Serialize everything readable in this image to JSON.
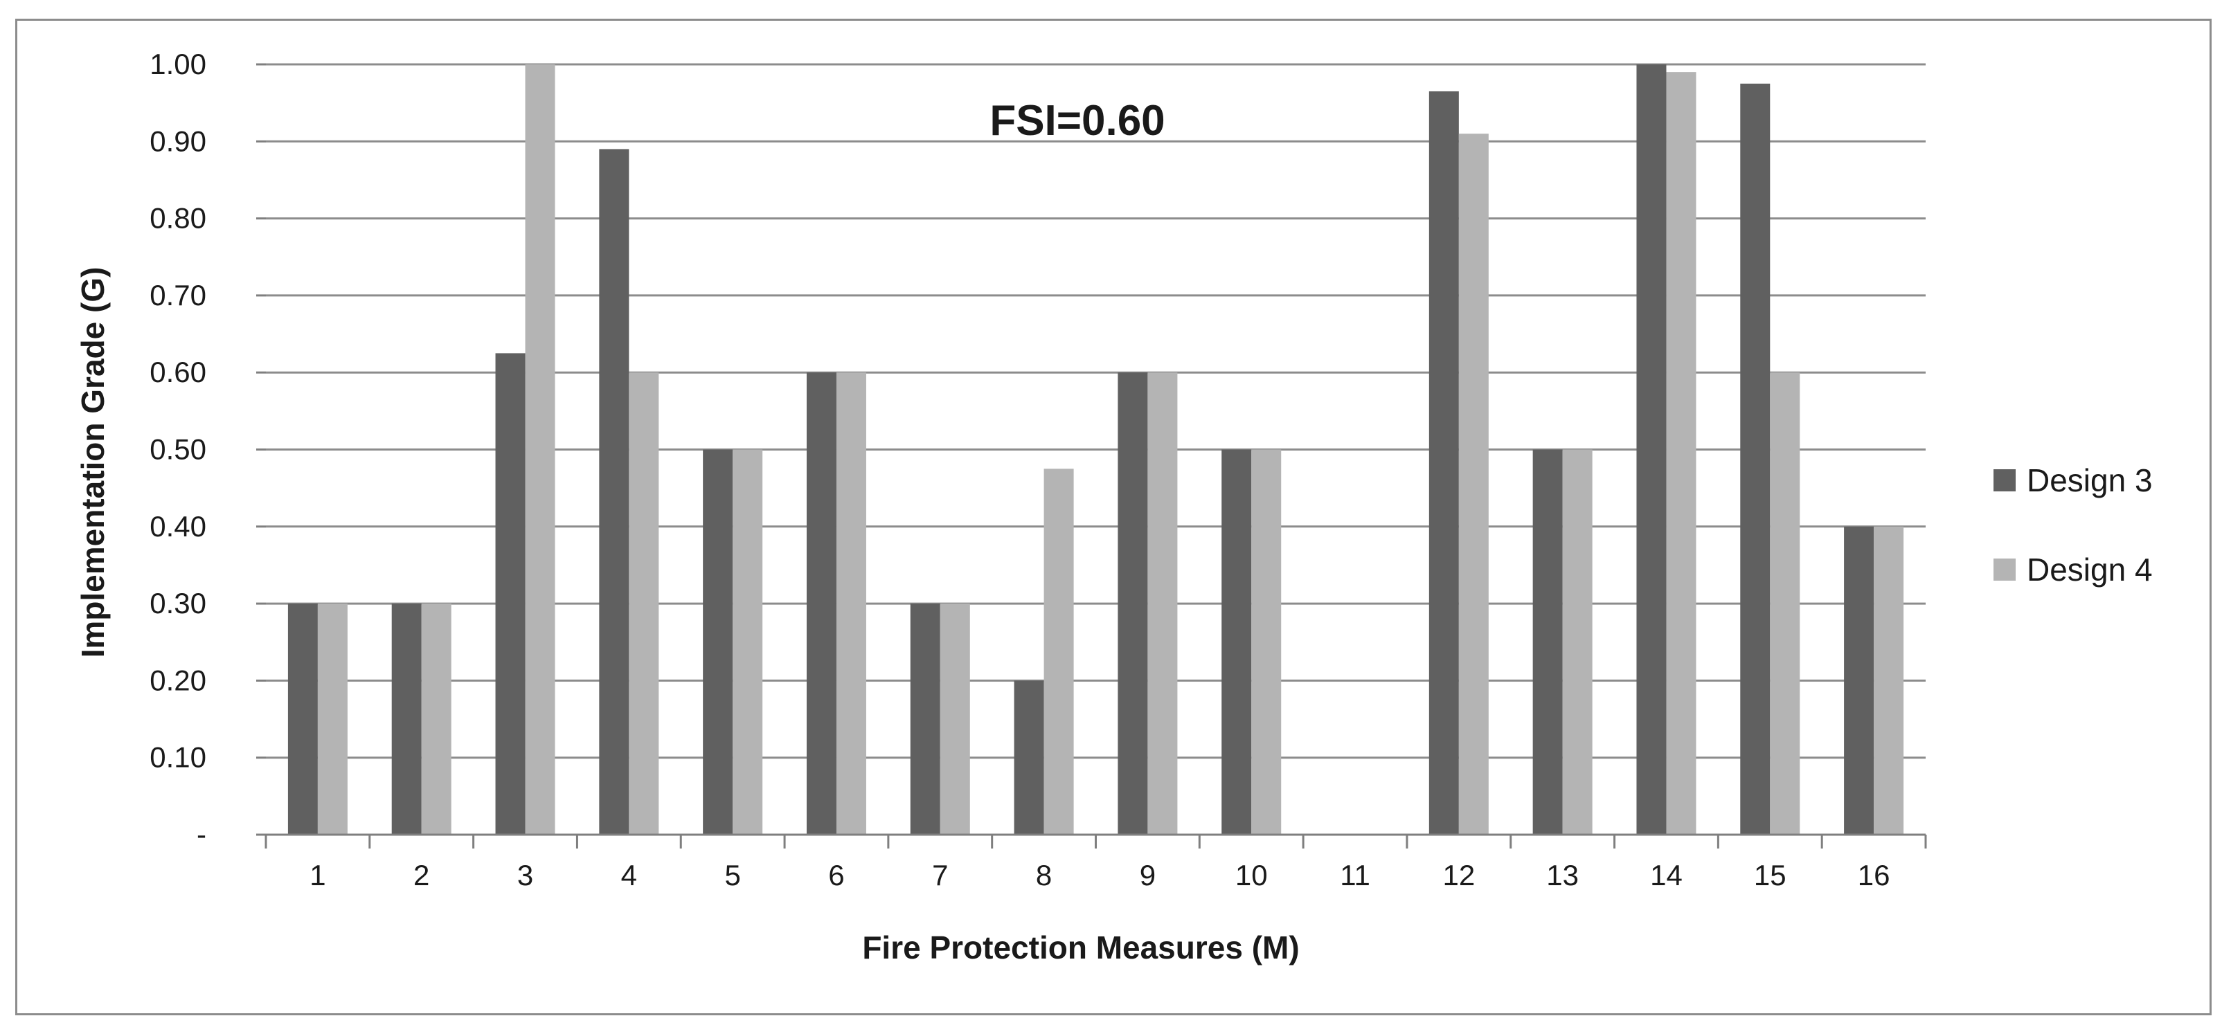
{
  "chart_data": {
    "type": "bar",
    "title": "",
    "annotation": "FSI=0.60",
    "xlabel": "Fire Protection Measures (M)",
    "ylabel": "Implementation Grade (G)",
    "categories": [
      "1",
      "2",
      "3",
      "4",
      "5",
      "6",
      "7",
      "8",
      "9",
      "10",
      "11",
      "12",
      "13",
      "14",
      "15",
      "16"
    ],
    "series": [
      {
        "name": "Design 3",
        "color": "#606060",
        "values": [
          0.3,
          0.3,
          0.625,
          0.89,
          0.5,
          0.6,
          0.3,
          0.2,
          0.6,
          0.5,
          0,
          0.965,
          0.5,
          1.0,
          0.975,
          0.4
        ]
      },
      {
        "name": "Design 4",
        "color": "#b4b4b4",
        "values": [
          0.3,
          0.3,
          1.0,
          0.6,
          0.5,
          0.6,
          0.3,
          0.475,
          0.6,
          0.5,
          0,
          0.91,
          0.5,
          0.99,
          0.6,
          0.4
        ]
      }
    ],
    "ylim": [
      0,
      1.0
    ],
    "yticks": [
      0,
      0.1,
      0.2,
      0.3,
      0.4,
      0.5,
      0.6,
      0.7,
      0.8,
      0.9,
      1.0
    ],
    "ytick_labels": [
      "-",
      "0.10",
      "0.20",
      "0.30",
      "0.40",
      "0.50",
      "0.60",
      "0.70",
      "0.80",
      "0.90",
      "1.00"
    ],
    "grid": true,
    "legend": "right",
    "gridline_color": "#8c8c8c",
    "axis_color": "#7f7f7f"
  }
}
